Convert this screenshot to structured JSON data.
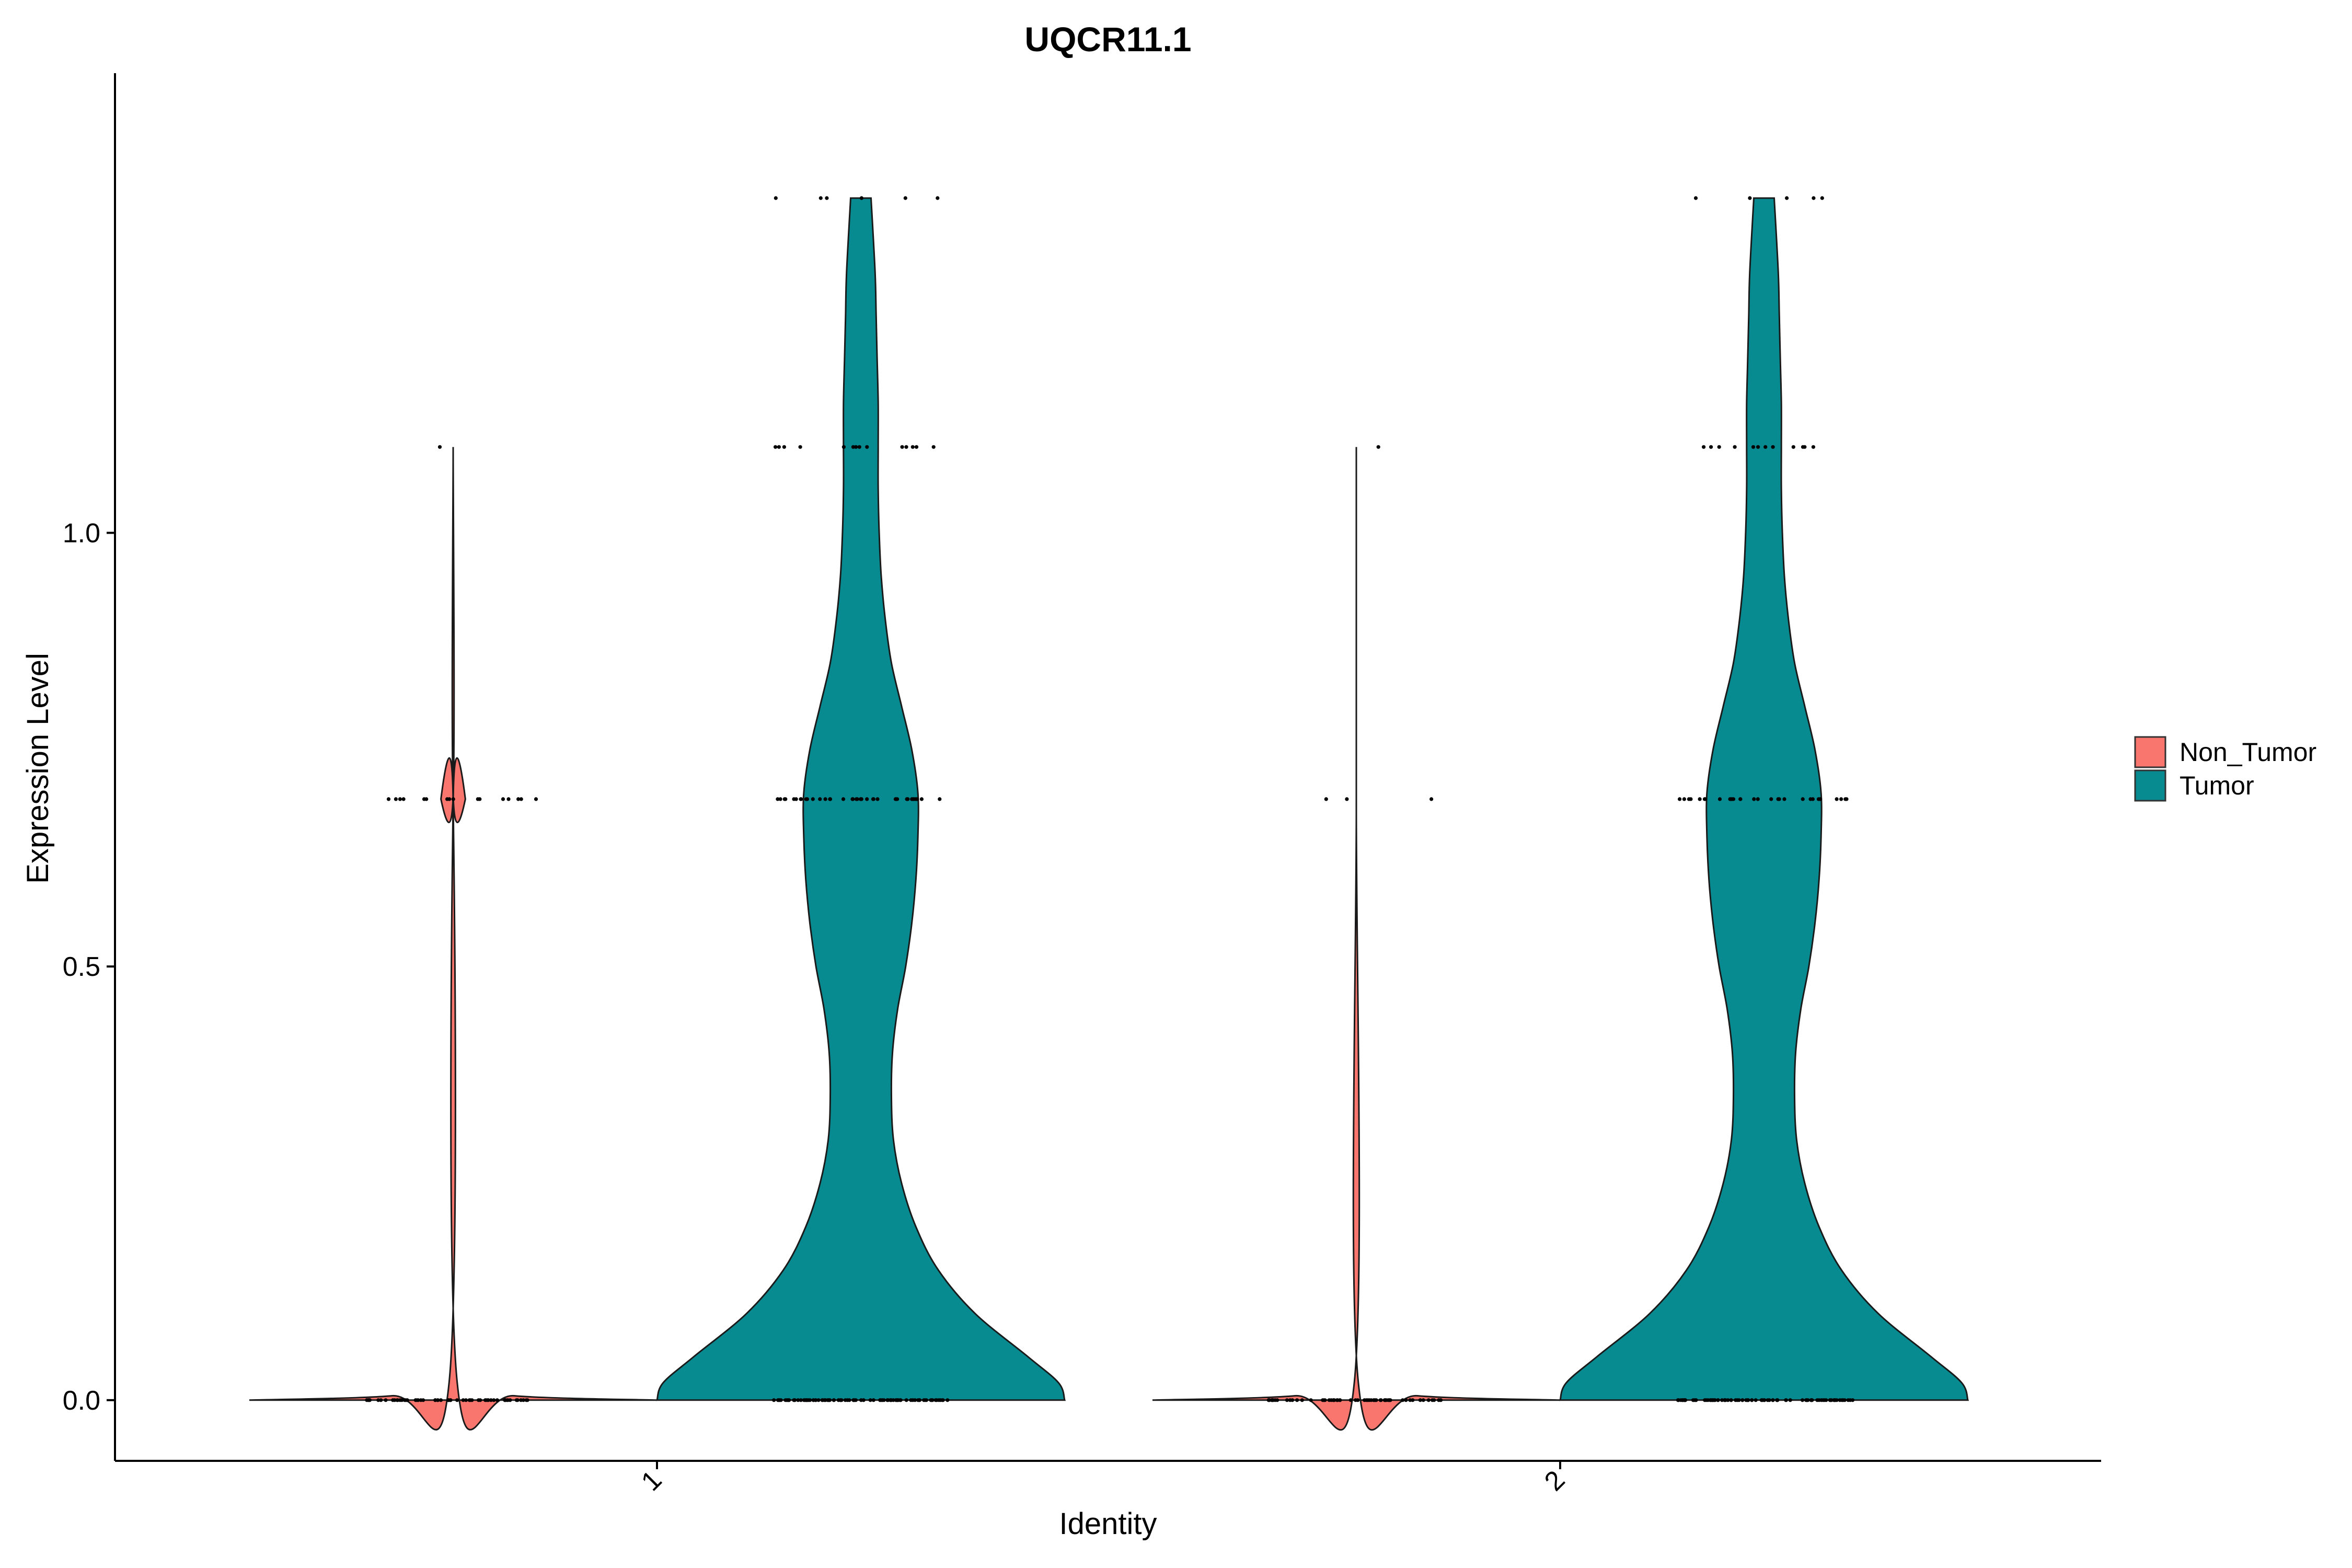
{
  "chart_data": {
    "type": "violin",
    "title": "UQCR11.1",
    "xlabel": "Identity",
    "ylabel": "Expression Level",
    "categories": [
      "1",
      "2"
    ],
    "y_ticks": [
      "0.0",
      "0.5",
      "1.0"
    ],
    "y_tick_values": [
      0,
      0.5,
      1.0
    ],
    "ylim": [
      -0.07,
      1.53
    ],
    "legend": {
      "position": "right",
      "entries": [
        {
          "name": "Non_Tumor",
          "color": "#F8766D"
        },
        {
          "name": "Tumor",
          "color": "#088A91"
        }
      ]
    },
    "series": [
      {
        "name": "Non_Tumor",
        "color": "#F8766D",
        "groups": [
          {
            "category": "1",
            "ymax": 1.099,
            "density_profile": [
              [
                0,
                1.0
              ],
              [
                0.005,
                0.3
              ],
              [
                0.02,
                0.02
              ],
              [
                0.69,
                0.0
              ],
              [
                0.693,
                0.06
              ],
              [
                0.697,
                0.0
              ],
              [
                1.099,
                0.0
              ]
            ],
            "point_levels": [
              0,
              0.693,
              1.099
            ],
            "point_counts": [
              60,
              16,
              1
            ]
          },
          {
            "category": "2",
            "ymax": 1.099,
            "density_profile": [
              [
                0,
                1.0
              ],
              [
                0.005,
                0.3
              ],
              [
                0.02,
                0.01
              ],
              [
                0.693,
                0.0
              ],
              [
                1.099,
                0.0
              ]
            ],
            "point_levels": [
              0,
              0.693,
              1.099
            ],
            "point_counts": [
              60,
              3,
              1
            ]
          }
        ]
      },
      {
        "name": "Tumor",
        "color": "#088A91",
        "groups": [
          {
            "category": "1",
            "ymax": 1.386,
            "density_profile": [
              [
                0,
                1.0
              ],
              [
                0.02,
                0.97
              ],
              [
                0.05,
                0.82
              ],
              [
                0.1,
                0.56
              ],
              [
                0.15,
                0.38
              ],
              [
                0.2,
                0.27
              ],
              [
                0.25,
                0.2
              ],
              [
                0.3,
                0.16
              ],
              [
                0.35,
                0.15
              ],
              [
                0.4,
                0.155
              ],
              [
                0.45,
                0.18
              ],
              [
                0.5,
                0.22
              ],
              [
                0.55,
                0.25
              ],
              [
                0.6,
                0.27
              ],
              [
                0.65,
                0.28
              ],
              [
                0.7,
                0.28
              ],
              [
                0.75,
                0.25
              ],
              [
                0.8,
                0.2
              ],
              [
                0.85,
                0.15
              ],
              [
                0.9,
                0.12
              ],
              [
                0.95,
                0.1
              ],
              [
                1.0,
                0.09
              ],
              [
                1.05,
                0.085
              ],
              [
                1.1,
                0.085
              ],
              [
                1.15,
                0.085
              ],
              [
                1.2,
                0.08
              ],
              [
                1.25,
                0.075
              ],
              [
                1.3,
                0.07
              ],
              [
                1.386,
                0.05
              ]
            ],
            "point_levels": [
              0,
              0.693,
              1.099,
              1.386
            ],
            "point_counts": [
              90,
              40,
              14,
              6
            ]
          },
          {
            "category": "2",
            "ymax": 1.386,
            "density_profile": [
              [
                0,
                1.0
              ],
              [
                0.02,
                0.97
              ],
              [
                0.05,
                0.82
              ],
              [
                0.1,
                0.56
              ],
              [
                0.15,
                0.38
              ],
              [
                0.2,
                0.27
              ],
              [
                0.25,
                0.2
              ],
              [
                0.3,
                0.16
              ],
              [
                0.35,
                0.15
              ],
              [
                0.4,
                0.155
              ],
              [
                0.45,
                0.18
              ],
              [
                0.5,
                0.22
              ],
              [
                0.55,
                0.25
              ],
              [
                0.6,
                0.27
              ],
              [
                0.65,
                0.28
              ],
              [
                0.7,
                0.28
              ],
              [
                0.75,
                0.25
              ],
              [
                0.8,
                0.2
              ],
              [
                0.85,
                0.15
              ],
              [
                0.9,
                0.12
              ],
              [
                0.95,
                0.1
              ],
              [
                1.0,
                0.09
              ],
              [
                1.05,
                0.085
              ],
              [
                1.1,
                0.085
              ],
              [
                1.15,
                0.085
              ],
              [
                1.2,
                0.08
              ],
              [
                1.25,
                0.075
              ],
              [
                1.3,
                0.07
              ],
              [
                1.386,
                0.05
              ]
            ],
            "point_levels": [
              0,
              0.693,
              1.099,
              1.386
            ],
            "point_counts": [
              90,
              30,
              12,
              5
            ]
          }
        ]
      }
    ]
  }
}
